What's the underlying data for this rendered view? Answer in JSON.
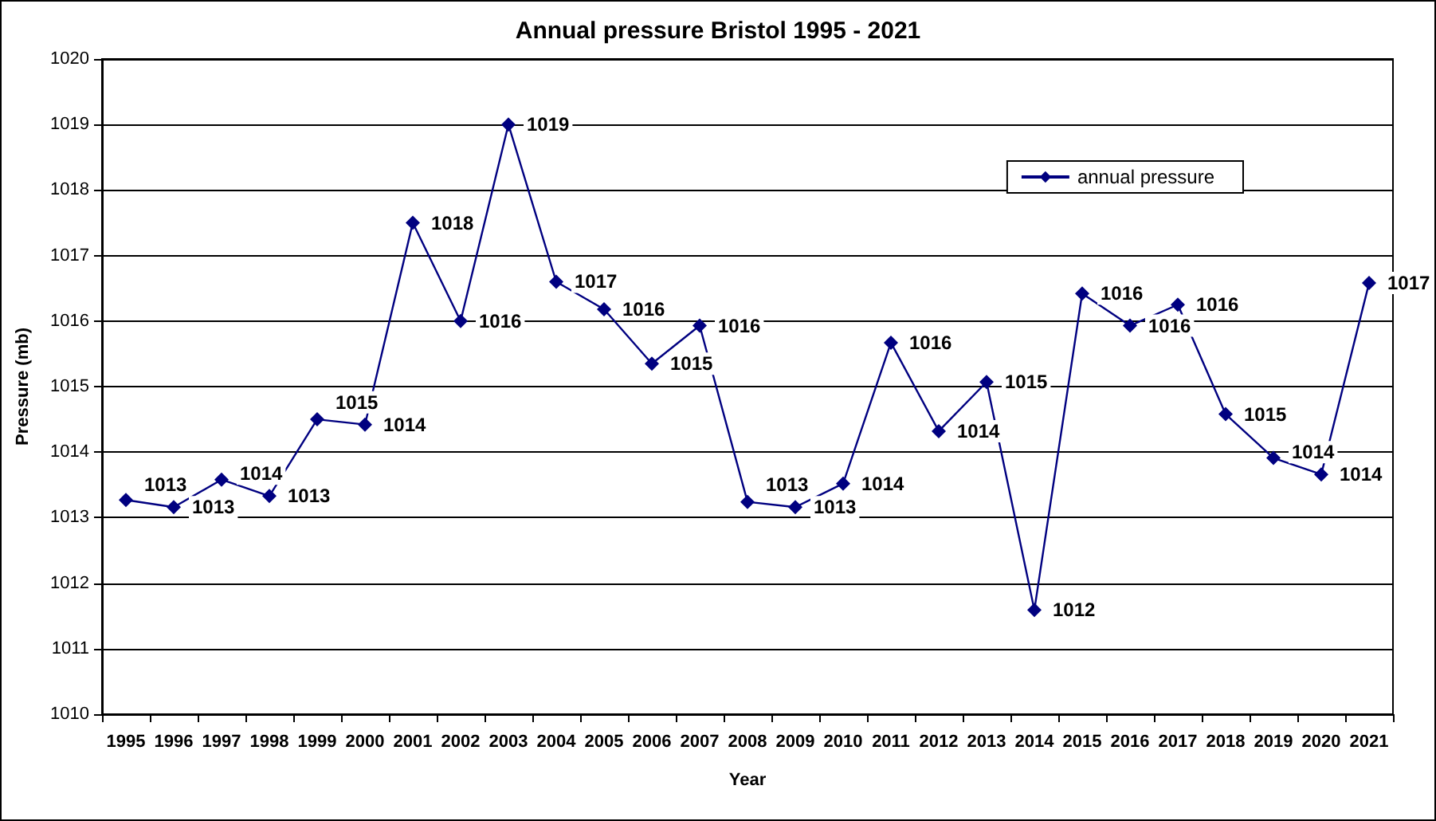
{
  "chart_data": {
    "type": "line",
    "title": "Annual pressure Bristol 1995 - 2021",
    "xlabel": "Year",
    "ylabel": "Pressure (mb)",
    "categories": [
      "1995",
      "1996",
      "1997",
      "1998",
      "1999",
      "2000",
      "2001",
      "2002",
      "2003",
      "2004",
      "2005",
      "2006",
      "2007",
      "2008",
      "2009",
      "2010",
      "2011",
      "2012",
      "2013",
      "2014",
      "2015",
      "2016",
      "2017",
      "2018",
      "2019",
      "2020",
      "2021"
    ],
    "series": [
      {
        "name": "annual pressure",
        "color": "#000080",
        "values": [
          1013.27,
          1013.16,
          1013.58,
          1013.33,
          1014.5,
          1014.42,
          1017.5,
          1016.0,
          1019.0,
          1016.6,
          1016.18,
          1015.35,
          1015.93,
          1013.24,
          1013.16,
          1013.52,
          1015.67,
          1014.32,
          1015.07,
          1011.59,
          1016.42,
          1015.93,
          1016.25,
          1014.58,
          1013.91,
          1013.66,
          1016.58
        ],
        "value_labels": [
          "1013",
          "1013",
          "1014",
          "1013",
          "1015",
          "1014",
          "1018",
          "1016",
          "1019",
          "1017",
          "1016",
          "1015",
          "1016",
          "1013",
          "1013",
          "1014",
          "1016",
          "1014",
          "1015",
          "1012",
          "1016",
          "1016",
          "1016",
          "1015",
          "1014",
          "1014",
          "1017"
        ]
      }
    ],
    "ylim": [
      1010,
      1020
    ],
    "yticks": [
      1010,
      1011,
      1012,
      1013,
      1014,
      1015,
      1016,
      1017,
      1018,
      1019,
      1020
    ],
    "grid": "y",
    "legend": "top right",
    "marker": "diamond",
    "line_style": "solid"
  }
}
